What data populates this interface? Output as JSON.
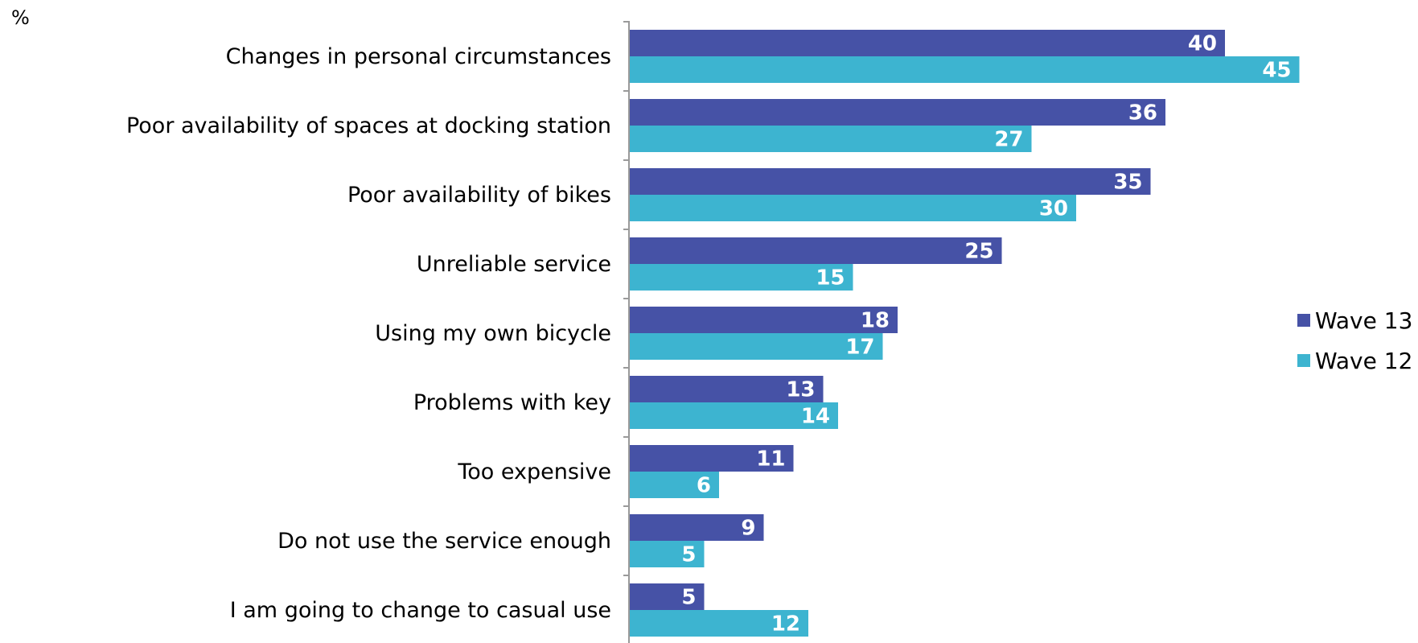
{
  "chart_data": {
    "type": "bar",
    "orientation": "horizontal",
    "unit_label": "%",
    "categories": [
      "Changes in personal circumstances",
      "Poor availability of spaces at docking station",
      "Poor availability of bikes",
      "Unreliable service",
      "Using my own bicycle",
      "Problems with key",
      "Too expensive",
      "Do not use the service enough",
      "I am going to change to casual use"
    ],
    "series": [
      {
        "name": "Wave 13",
        "color": "#4652A6",
        "values": [
          40,
          36,
          35,
          25,
          18,
          13,
          11,
          9,
          5
        ]
      },
      {
        "name": "Wave 12",
        "color": "#3DB4D0",
        "values": [
          45,
          27,
          30,
          15,
          17,
          14,
          6,
          5,
          12
        ]
      }
    ],
    "xlim": [
      0,
      50
    ],
    "grid": false,
    "data_labels": true,
    "legend_position": "right"
  }
}
